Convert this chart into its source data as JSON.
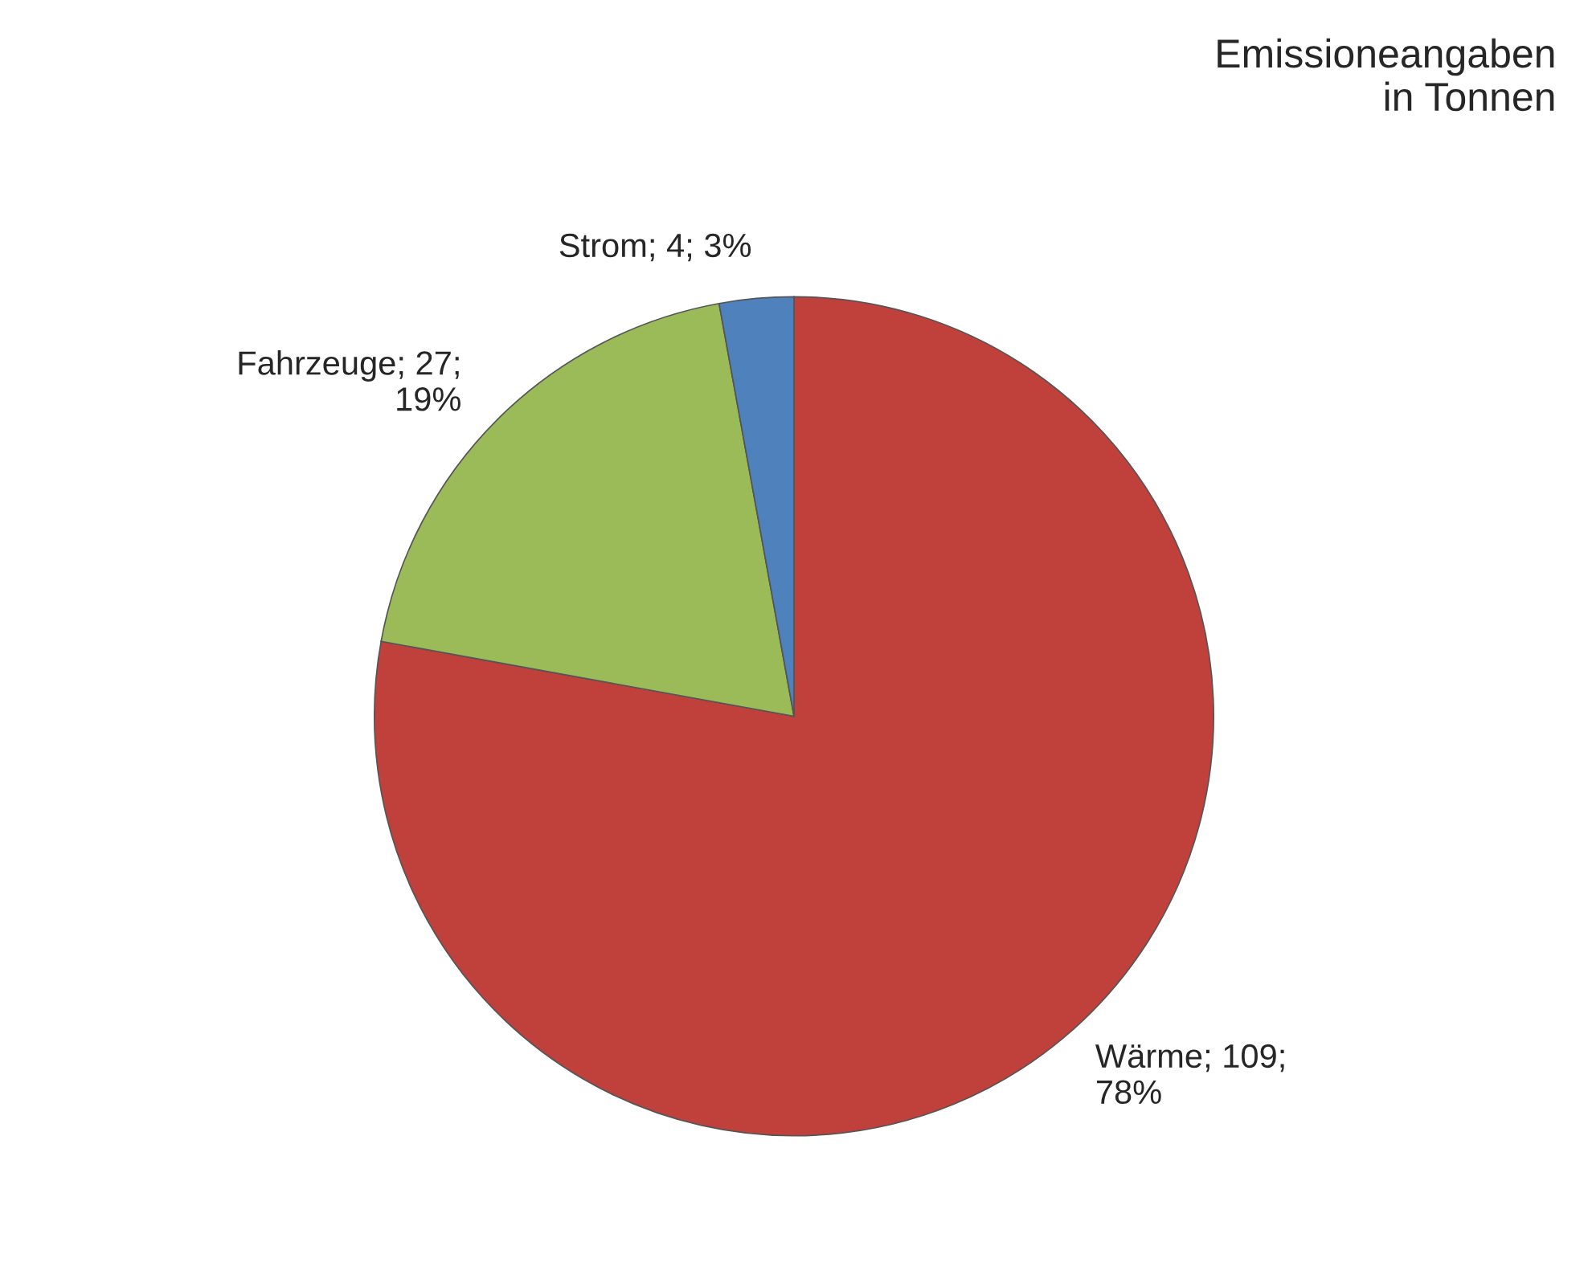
{
  "chart_data": {
    "type": "pie",
    "title": "Emissioneangaben\nin Tonnen",
    "categories": [
      "Wärme; 109; 78%",
      "Fahrzeuge; 27; 19%",
      "Strom; 4; 3%"
    ],
    "values": [
      109,
      27,
      4
    ],
    "colors": [
      "#c0403c",
      "#9bbb59",
      "#4f81bd"
    ]
  }
}
